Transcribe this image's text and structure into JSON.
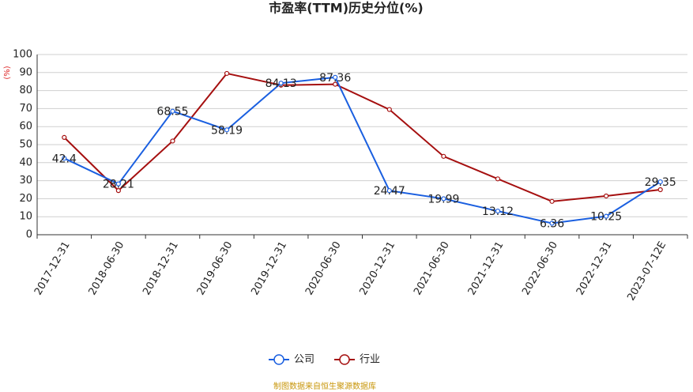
{
  "chart_data": {
    "type": "line",
    "title": "市盈率(TTM)历史分位(%)",
    "y_label": "(%)",
    "source": "制图数据来自恒生聚源数据库",
    "categories": [
      "2017-12-31",
      "2018-06-30",
      "2018-12-31",
      "2019-06-30",
      "2019-12-31",
      "2020-06-30",
      "2020-12-31",
      "2021-06-30",
      "2021-12-31",
      "2022-06-30",
      "2022-12-31",
      "2023-07-12E"
    ],
    "series": [
      {
        "name": "公司",
        "color": "#1a5fe0",
        "values": [
          42.4,
          28.21,
          68.55,
          58.19,
          84.13,
          87.36,
          24.47,
          19.99,
          13.12,
          6.36,
          10.25,
          29.35
        ],
        "show_labels": true
      },
      {
        "name": "行业",
        "color": "#a50f0f",
        "values": [
          54,
          24.5,
          52,
          89.5,
          83,
          83.5,
          69.5,
          43.5,
          31,
          18.5,
          21.5,
          25
        ],
        "show_labels": false
      }
    ],
    "ylim": [
      0,
      100
    ],
    "yticks": [
      0,
      10,
      20,
      30,
      40,
      50,
      60,
      70,
      80,
      90,
      100
    ],
    "grid": true
  }
}
